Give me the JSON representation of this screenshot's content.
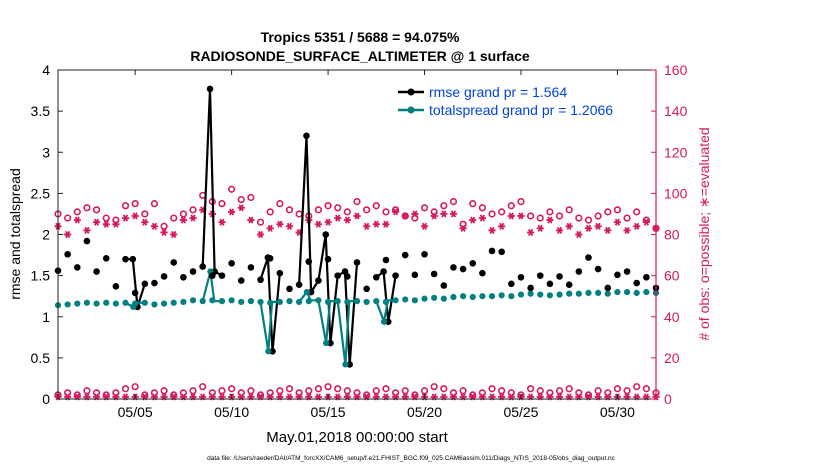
{
  "chart_data": {
    "type": "line",
    "title_line1": "Tropics 5351 / 5688 = 94.075%",
    "title_line2": "RADIOSONDE_SURFACE_ALTIMETER @ 1 surface",
    "xlabel": "May.01,2018 00:00:00 start",
    "ylabel_left": "rmse and totalspread",
    "ylabel_right": "# of obs: o=possible; ∗=evaluated",
    "footer": "data file: /Users/raeder/DAI/ATM_forcXX/CAM6_setup/f.e21.FHIST_BGC.f09_025.CAM6assim.011/Diags_NTrS_2018-05/obs_diag_output.nc",
    "xlim": [
      1,
      32
    ],
    "ylim_left": [
      0,
      4
    ],
    "ylim_right": [
      0,
      160
    ],
    "x_ticks": [
      {
        "value": 5,
        "label": "05/05"
      },
      {
        "value": 10,
        "label": "05/10"
      },
      {
        "value": 15,
        "label": "05/15"
      },
      {
        "value": 20,
        "label": "05/20"
      },
      {
        "value": 25,
        "label": "05/25"
      },
      {
        "value": 30,
        "label": "05/30"
      }
    ],
    "y_ticks_left": [
      {
        "value": 0,
        "label": "0"
      },
      {
        "value": 0.5,
        "label": "0.5"
      },
      {
        "value": 1,
        "label": "1"
      },
      {
        "value": 1.5,
        "label": "1.5"
      },
      {
        "value": 2,
        "label": "2"
      },
      {
        "value": 2.5,
        "label": "2.5"
      },
      {
        "value": 3,
        "label": "3"
      },
      {
        "value": 3.5,
        "label": "3.5"
      },
      {
        "value": 4,
        "label": "4"
      }
    ],
    "y_ticks_right": [
      {
        "value": 0,
        "label": "0"
      },
      {
        "value": 20,
        "label": "20"
      },
      {
        "value": 40,
        "label": "40"
      },
      {
        "value": 60,
        "label": "60"
      },
      {
        "value": 80,
        "label": "80"
      },
      {
        "value": 100,
        "label": "100"
      },
      {
        "value": 120,
        "label": "120"
      },
      {
        "value": 140,
        "label": "140"
      },
      {
        "value": 160,
        "label": "160"
      }
    ],
    "legend": [
      {
        "name": "rmse grand pr = 1.564",
        "color": "#000000"
      },
      {
        "name": "totalspread grand pr = 1.2066",
        "color": "#008080"
      }
    ],
    "legend_text_color": "#0044dd",
    "colors": {
      "rmse": "#000000",
      "spread": "#008080",
      "obs": "#d6185f"
    },
    "x": [
      1.0,
      1.5,
      2.0,
      2.5,
      3.0,
      3.5,
      4.0,
      4.5,
      5.0,
      5.5,
      6.0,
      6.5,
      7.0,
      7.5,
      8.0,
      8.5,
      9.0,
      9.5,
      10.0,
      10.5,
      11.0,
      11.5,
      12.0,
      12.5,
      13.0,
      13.5,
      14.0,
      14.5,
      15.0,
      15.5,
      16.0,
      16.5,
      17.0,
      17.5,
      18.0,
      18.5,
      19.0,
      19.5,
      20.0,
      20.5,
      21.0,
      21.5,
      22.0,
      22.5,
      23.0,
      23.5,
      24.0,
      24.5,
      25.0,
      25.5,
      26.0,
      26.5,
      27.0,
      27.5,
      28.0,
      28.5,
      29.0,
      29.5,
      30.0,
      30.5,
      31.0,
      31.5,
      32.0
    ],
    "series": [
      {
        "name": "rmse",
        "values": [
          1.56,
          1.76,
          1.6,
          1.92,
          1.55,
          1.71,
          1.37,
          1.7,
          1.29,
          1.4,
          1.41,
          1.49,
          1.66,
          1.48,
          1.55,
          1.61,
          1.5,
          1.5,
          1.65,
          1.44,
          1.6,
          1.45,
          1.71,
          1.53,
          1.34,
          1.39,
          1.67,
          1.44,
          1.7,
          1.5,
          1.49,
          1.66,
          1.34,
          1.48,
          1.69,
          1.5,
          1.75,
          1.51,
          1.76,
          1.52,
          1.38,
          1.6,
          1.58,
          1.65,
          1.53,
          1.8,
          1.79,
          1.4,
          1.48,
          1.35,
          1.5,
          1.4,
          1.49,
          1.39,
          1.55,
          1.72,
          1.58,
          1.35,
          1.51,
          1.55,
          1.41,
          1.48,
          1.35
        ]
      },
      {
        "name": "totalspread",
        "values": [
          1.14,
          1.15,
          1.16,
          1.17,
          1.16,
          1.17,
          1.16,
          1.17,
          1.16,
          1.17,
          1.15,
          1.16,
          1.17,
          1.18,
          1.2,
          1.19,
          1.2,
          1.19,
          1.2,
          1.18,
          1.19,
          1.18,
          1.17,
          1.18,
          1.19,
          1.18,
          1.19,
          1.2,
          1.18,
          1.19,
          1.18,
          1.19,
          1.18,
          1.19,
          1.18,
          1.2,
          1.21,
          1.2,
          1.22,
          1.23,
          1.22,
          1.24,
          1.25,
          1.24,
          1.25,
          1.25,
          1.26,
          1.25,
          1.27,
          1.28,
          1.27,
          1.26,
          1.27,
          1.28,
          1.28,
          1.29,
          1.29,
          1.28,
          1.3,
          1.3,
          1.29,
          1.3,
          1.29
        ]
      },
      {
        "name": "possible",
        "values": [
          90,
          88,
          91,
          93,
          92,
          88,
          87,
          94,
          95,
          90,
          95,
          84,
          88,
          90,
          92,
          99,
          96,
          95,
          102,
          97,
          98,
          86,
          91,
          95,
          92,
          90,
          89,
          92,
          94,
          93,
          91,
          96,
          92,
          94,
          91,
          92,
          89,
          88,
          93,
          91,
          94,
          96,
          85,
          95,
          93,
          90,
          91,
          94,
          96,
          89,
          88,
          91,
          89,
          92,
          88,
          87,
          89,
          91,
          92,
          88,
          91,
          87,
          83
        ]
      },
      {
        "name": "evaluated",
        "values": [
          84,
          80,
          87,
          82,
          86,
          85,
          85,
          88,
          89,
          86,
          84,
          81,
          80,
          87,
          88,
          92,
          90,
          86,
          91,
          93,
          87,
          80,
          83,
          85,
          84,
          81,
          87,
          85,
          86,
          88,
          87,
          89,
          84,
          85,
          85,
          91,
          89,
          90,
          84,
          89,
          90,
          90,
          83,
          87,
          88,
          82,
          84,
          89,
          89,
          81,
          83,
          87,
          82,
          84,
          80,
          83,
          84,
          82,
          86,
          82,
          84,
          86,
          83
        ]
      }
    ],
    "rmse_spikes": [
      {
        "x": 5,
        "values": [
          1.7,
          1.12
        ]
      },
      {
        "x": 9,
        "values": [
          3.77,
          1.55
        ]
      },
      {
        "x": 12,
        "values": [
          1.72,
          0.58
        ]
      },
      {
        "x": 14,
        "values": [
          3.2,
          1.3
        ]
      },
      {
        "x": 15,
        "values": [
          2.0,
          0.68
        ]
      },
      {
        "x": 16,
        "values": [
          1.55,
          0.42
        ]
      },
      {
        "x": 18,
        "values": [
          1.55,
          0.94
        ]
      }
    ],
    "possible_low": [
      2,
      3,
      2,
      4,
      3,
      2,
      3,
      5,
      6,
      2,
      3,
      4,
      2,
      3,
      4,
      6,
      3,
      4,
      5,
      3,
      4,
      2,
      3,
      4,
      5,
      3,
      4,
      5,
      6,
      5,
      4,
      3,
      2,
      4,
      5,
      3,
      4,
      2,
      4,
      6,
      5,
      3,
      4,
      2,
      3,
      5,
      4,
      3,
      2,
      5,
      4,
      3,
      4,
      5,
      3,
      2,
      4,
      3,
      5,
      4,
      6,
      5,
      3
    ],
    "evaluated_low": [
      1,
      1,
      1,
      1,
      1,
      1,
      1,
      1,
      1,
      1,
      1,
      1,
      1,
      1,
      1,
      1,
      1,
      1,
      1,
      1,
      1,
      1,
      1,
      1,
      1,
      1,
      1,
      1,
      1,
      1,
      1,
      1,
      1,
      1,
      1,
      1,
      1,
      1,
      1,
      1,
      1,
      1,
      1,
      1,
      1,
      1,
      1,
      1,
      1,
      1,
      1,
      1,
      1,
      1,
      1,
      1,
      1,
      1,
      1,
      1,
      1,
      1,
      1
    ]
  }
}
